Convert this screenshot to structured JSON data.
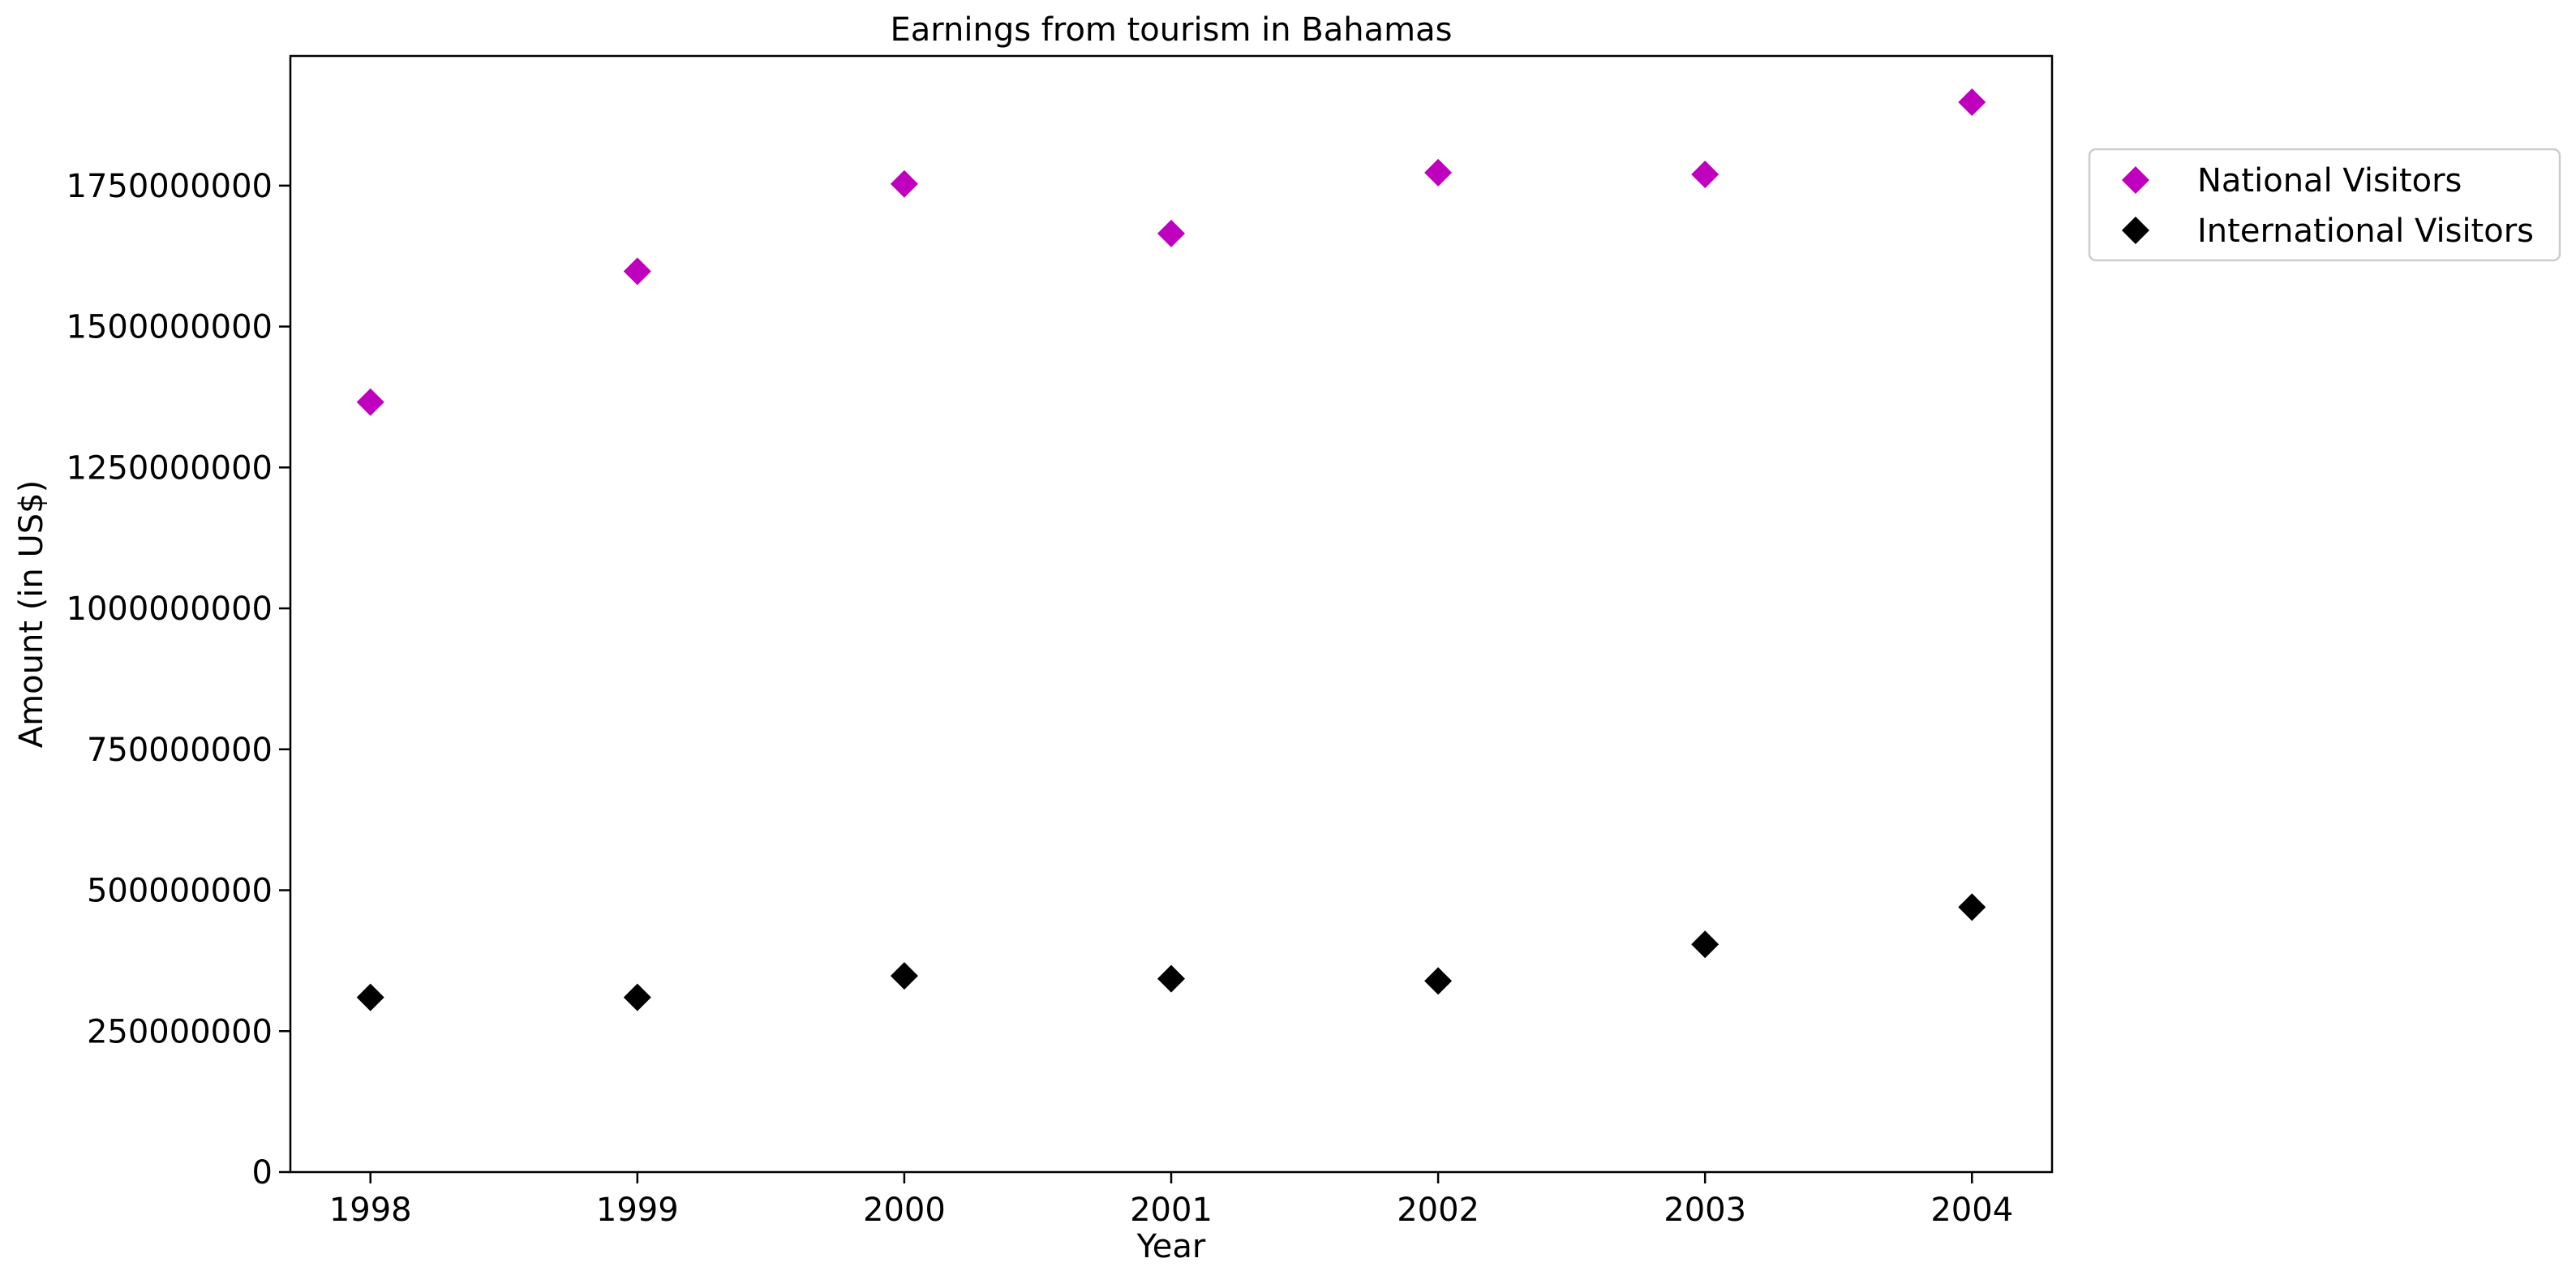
{
  "chart_data": {
    "type": "scatter",
    "title": "Earnings from tourism in Bahamas",
    "xlabel": "Year",
    "ylabel": "Amount (in US$)",
    "x": [
      "1998",
      "1999",
      "2000",
      "2001",
      "2002",
      "2003",
      "2004"
    ],
    "xlim": [
      1997.7,
      2004.3
    ],
    "ylim": [
      0,
      1980000000
    ],
    "yticks": [
      "0",
      "250000000",
      "500000000",
      "750000000",
      "1000000000",
      "1250000000",
      "1500000000",
      "1750000000"
    ],
    "grid": false,
    "legend_position": "outside-top-right",
    "marker": "diamond",
    "series": [
      {
        "name": "National Visitors",
        "color": "#bf00bf",
        "values": [
          1366000000,
          1598000000,
          1753000000,
          1665000000,
          1773000000,
          1770000000,
          1898000000
        ]
      },
      {
        "name": "International Visitors",
        "color": "#000000",
        "values": [
          310000000,
          310000000,
          348000000,
          343000000,
          339000000,
          404000000,
          470000000
        ]
      }
    ]
  }
}
